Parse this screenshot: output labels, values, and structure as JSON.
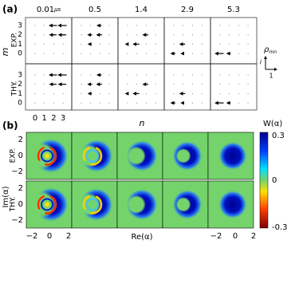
{
  "panel_a": {
    "label": "(a)",
    "times": [
      "0.01",
      "0.5",
      "1.4",
      "2.9",
      "5.3"
    ],
    "time_unit": "μs",
    "y_axis_label": "m",
    "row_labels": [
      "EXP.",
      "THY."
    ],
    "y_ticks": [
      "3",
      "2",
      "1",
      "0"
    ],
    "x_ticks": [
      "0",
      "1",
      "2",
      "3"
    ],
    "x_axis_label": "n",
    "legend": {
      "symbol": "ρ",
      "subscript": "mn",
      "vertical_label": "i",
      "horizontal_label": "1"
    }
  },
  "panel_b": {
    "label": "(b)",
    "colorbar_title": "W(α)",
    "colorbar_ticks": [
      "0.3",
      "0",
      "-0.3"
    ],
    "row_labels": [
      "EXP.",
      "THY."
    ],
    "y_axis_label": "Im(α)",
    "y_ticks": [
      "2",
      "0",
      "−2"
    ],
    "x_ticks": [
      "−2",
      "0",
      "2"
    ],
    "x_axis_label": "Re(α)"
  }
}
